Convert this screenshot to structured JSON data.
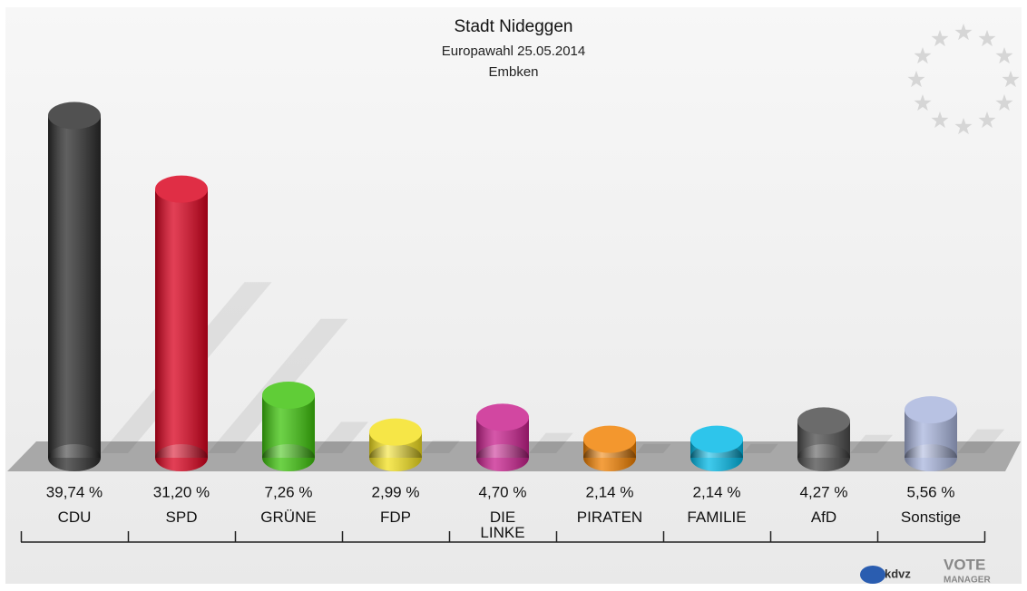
{
  "chart_data": {
    "type": "bar",
    "title": "Stadt Nideggen",
    "subtitle": "Europawahl 25.05.2014",
    "annotation": "Embken",
    "categories": [
      "CDU",
      "SPD",
      "GRÜNE",
      "FDP",
      "DIE\nLINKE",
      "PIRATEN",
      "FAMILIE",
      "AfD",
      "Sonstige"
    ],
    "values": [
      39.74,
      31.2,
      7.26,
      2.99,
      4.7,
      2.14,
      2.14,
      4.27,
      5.56
    ],
    "value_labels": [
      "39,74 %",
      "31,20 %",
      "7,26 %",
      "2,99 %",
      "4,70 %",
      "2,14 %",
      "2,14 %",
      "4,27 %",
      "5,56 %"
    ],
    "colors": [
      "#2b2b2b",
      "#d9001d",
      "#3dc30b",
      "#f4e11f",
      "#c81f8d",
      "#f18000",
      "#00b9e7",
      "#4b4b4b",
      "#a9b5dd"
    ],
    "logo": {
      "brand": "kdvz",
      "product_top": "VOTE",
      "product_bottom": "MANAGER"
    }
  }
}
